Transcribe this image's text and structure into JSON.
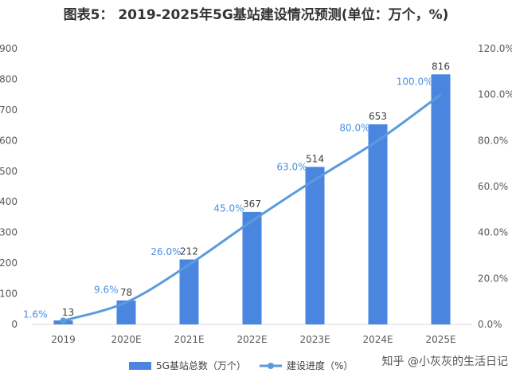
{
  "chart_data": {
    "type": "bar",
    "title": "图表5： 2019-2025年5G基站建设情况预测(单位：万个，%)",
    "categories": [
      "2019",
      "2020E",
      "2021E",
      "2022E",
      "2023E",
      "2024E",
      "2025E"
    ],
    "series": [
      {
        "name": "5G基站总数（万个）",
        "type": "bar",
        "axis": "left",
        "values": [
          13,
          78,
          212,
          367,
          514,
          653,
          816
        ],
        "labels": [
          "13",
          "78",
          "212",
          "367",
          "514",
          "653",
          "816"
        ],
        "color": "#4a86e0"
      },
      {
        "name": "建设进度（%）",
        "type": "line",
        "axis": "right",
        "values": [
          1.6,
          9.6,
          26.0,
          45.0,
          63.0,
          80.0,
          100.0
        ],
        "labels": [
          "1.6%",
          "9.6%",
          "26.0%",
          "45.0%",
          "63.0%",
          "80.0%",
          "100.0%"
        ],
        "color": "#5b9bdc"
      }
    ],
    "y_left": {
      "ylim": [
        0,
        900
      ],
      "ticks": [
        "0",
        "100",
        "200",
        "300",
        "400",
        "500",
        "600",
        "700",
        "800",
        "900"
      ]
    },
    "y_right": {
      "ylim": [
        0,
        120
      ],
      "ticks": [
        "0.0%",
        "20.0%",
        "40.0%",
        "60.0%",
        "80.0%",
        "100.0%",
        "120.0%"
      ]
    },
    "legend_position": "bottom",
    "grid": false
  },
  "watermark": "知乎 @小灰灰的生活日记"
}
